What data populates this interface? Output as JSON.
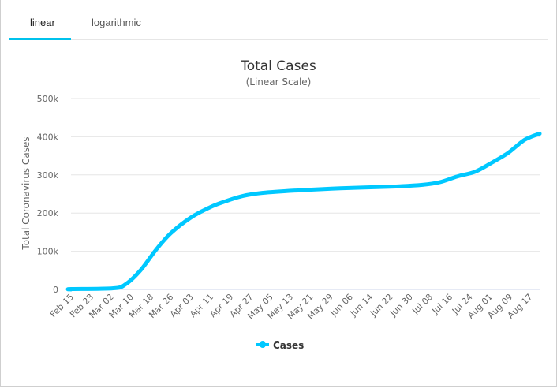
{
  "tabs": [
    {
      "label": "linear",
      "active": true
    },
    {
      "label": "logarithmic",
      "active": false
    }
  ],
  "colors": {
    "accent": "#00c2ec",
    "series": "#00c8ff",
    "grid": "#e6e6e6"
  },
  "chart_data": {
    "type": "line",
    "title": "Total Cases",
    "subtitle": "(Linear Scale)",
    "ylabel": "Total Coronavirus Cases",
    "xlabel": "",
    "ylim": [
      0,
      500000
    ],
    "yticks": [
      0,
      100000,
      200000,
      300000,
      400000,
      500000
    ],
    "ytick_labels": [
      "0",
      "100k",
      "200k",
      "300k",
      "400k",
      "500k"
    ],
    "xtick_labels": [
      "Feb 15",
      "Feb 23",
      "Mar 02",
      "Mar 10",
      "Mar 18",
      "Mar 26",
      "Apr 03",
      "Apr 11",
      "Apr 19",
      "Apr 27",
      "May 05",
      "May 13",
      "May 21",
      "May 29",
      "Jun 06",
      "Jun 14",
      "Jun 22",
      "Jun 30",
      "Jul 08",
      "Jul 16",
      "Jul 24",
      "Aug 01",
      "Aug 09",
      "Aug 17"
    ],
    "xtick_step_days": 8,
    "grid": true,
    "legend": {
      "position": "bottom-center",
      "entries": [
        "Cases"
      ]
    },
    "series": [
      {
        "name": "Cases",
        "x_days_since_feb15": [
          0,
          17,
          22,
          28,
          34,
          40,
          48,
          56,
          62,
          69,
          77,
          90,
          108,
          128,
          141,
          148,
          155,
          162,
          168,
          175,
          179,
          182,
          185,
          188
        ],
        "values": [
          1000,
          3000,
          14000,
          51000,
          103000,
          147000,
          188000,
          216000,
          231000,
          245000,
          253000,
          259000,
          265000,
          269000,
          274000,
          281000,
          296000,
          308000,
          329000,
          356000,
          377000,
          392000,
          401000,
          408000
        ]
      }
    ]
  }
}
